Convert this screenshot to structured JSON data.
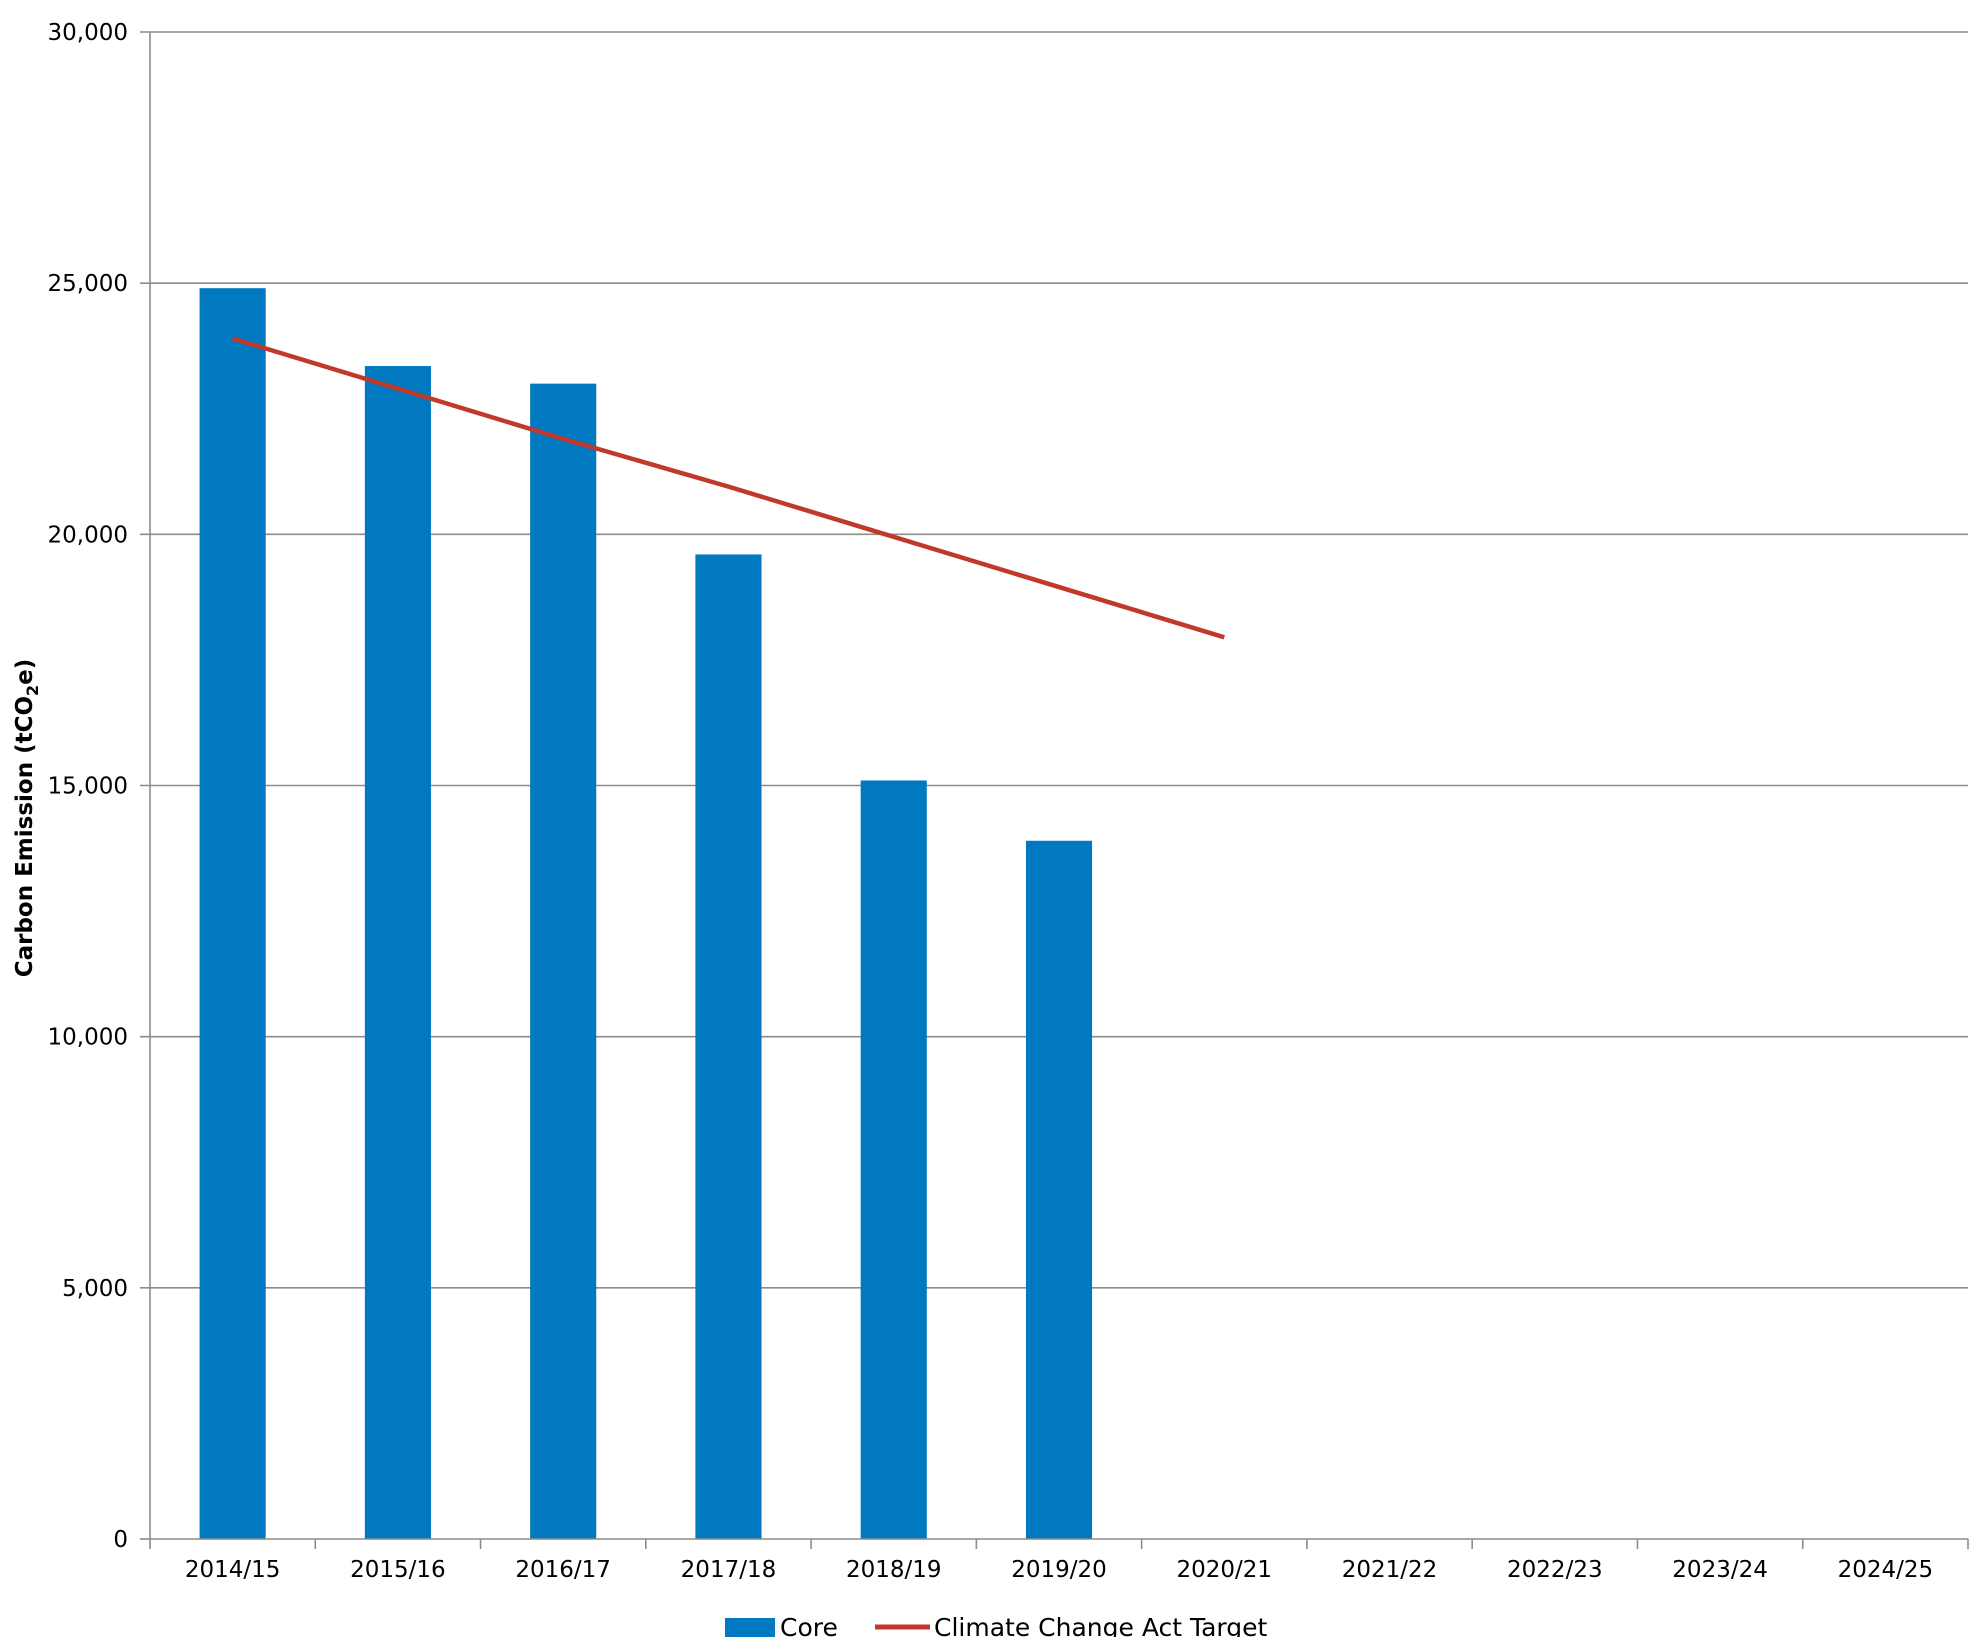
{
  "chart_data": {
    "type": "bar",
    "categories": [
      "2014/15",
      "2015/16",
      "2016/17",
      "2017/18",
      "2018/19",
      "2019/20",
      "2020/21",
      "2021/22",
      "2022/23",
      "2023/24",
      "2024/25"
    ],
    "series": [
      {
        "name": "Core",
        "type": "bar",
        "color": "#0079c1",
        "values": [
          24900,
          23350,
          23000,
          19600,
          15100,
          13900,
          null,
          null,
          null,
          null,
          null
        ]
      },
      {
        "name": "Climate Change Act Target",
        "type": "line",
        "color": "#c0392b",
        "values": [
          23900,
          22900,
          21900,
          20950,
          19950,
          18950,
          17950,
          null,
          null,
          null,
          null
        ]
      }
    ],
    "ylabel_main": "Carbon Emission (tCO",
    "ylabel_sub": "2",
    "ylabel_tail": "e)",
    "ylim": [
      0,
      30000
    ],
    "yticks": [
      0,
      5000,
      10000,
      15000,
      20000,
      25000,
      30000
    ],
    "ytick_labels": [
      "0",
      "5,000",
      "10,000",
      "15,000",
      "20,000",
      "25,000",
      "30,000"
    ],
    "grid": true,
    "legend_position": "bottom"
  }
}
